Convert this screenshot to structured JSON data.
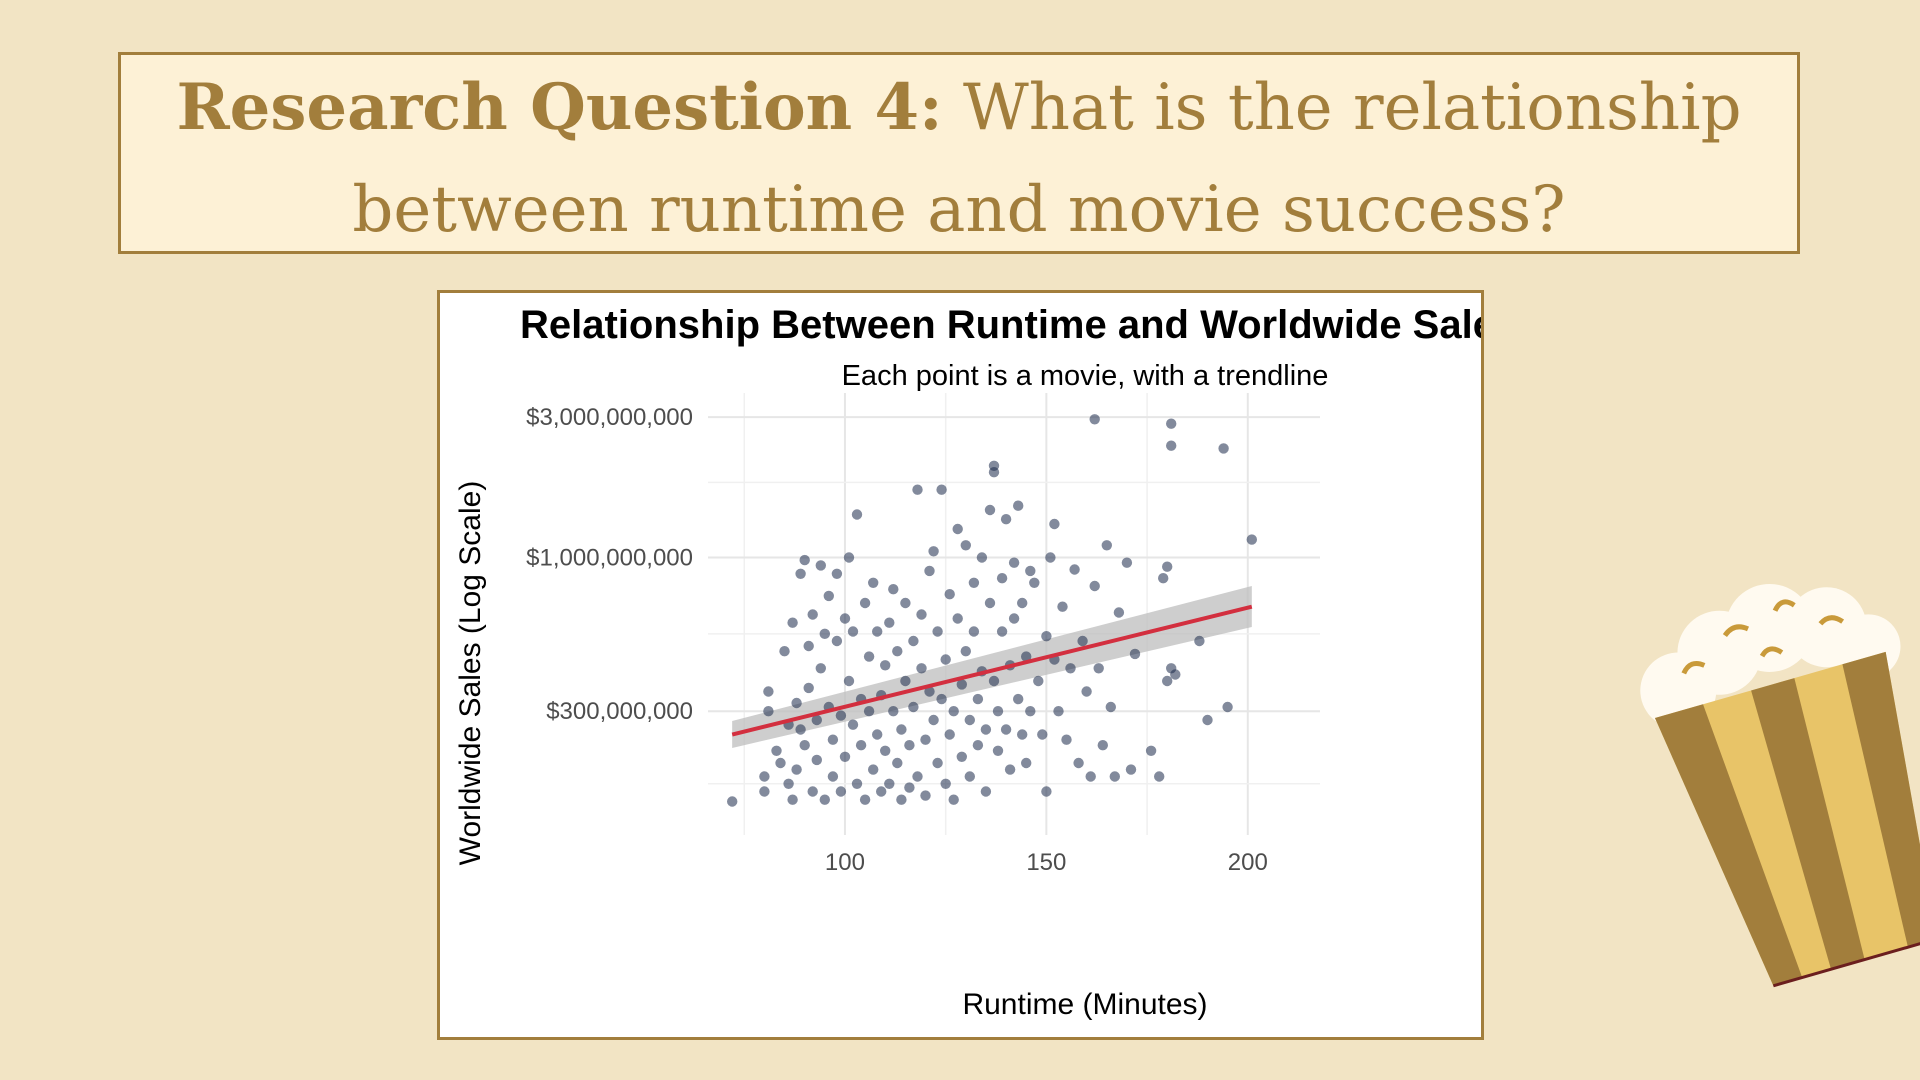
{
  "slide": {
    "heading_bold": "Research Question 4:",
    "heading_line1_rest": " What is the relationship",
    "heading_line2": "between runtime and movie success?",
    "decoration_icon": "popcorn-bucket-icon"
  },
  "colors": {
    "background": "#f2e4c4",
    "title_box_fill": "#fdf1d6",
    "accent_gold": "#a27e3c",
    "points": "#1b2a4a",
    "trendline": "#d32f3f",
    "confidence_band": "#bdbdbd"
  },
  "chart_data": {
    "type": "scatter",
    "title": "Relationship Between Runtime and Worldwide Sales",
    "subtitle": "Each point is a movie, with a trendline",
    "xlabel": "Runtime (Minutes)",
    "ylabel": "Worldwide Sales (Log Scale)",
    "x_scale": "linear",
    "y_scale": "log",
    "xlim": [
      66,
      208
    ],
    "ylim": [
      128000000,
      3100000000
    ],
    "x_ticks": [
      100,
      150,
      200
    ],
    "x_tick_labels": [
      "100",
      "150",
      "200"
    ],
    "y_ticks": [
      300000000,
      1000000000,
      3000000000
    ],
    "y_tick_labels": [
      "$300,000,000",
      "$1,000,000,000",
      "$3,000,000,000"
    ],
    "grid": true,
    "legend": "none",
    "trendline": {
      "x": [
        72,
        201
      ],
      "y": [
        250000000,
        680000000
      ],
      "band_lower": [
        225000000,
        580000000
      ],
      "band_upper": [
        278000000,
        800000000
      ]
    },
    "points": [
      [
        72,
        148000000
      ],
      [
        80,
        160000000
      ],
      [
        80,
        180000000
      ],
      [
        81,
        350000000
      ],
      [
        81,
        300000000
      ],
      [
        83,
        220000000
      ],
      [
        84,
        200000000
      ],
      [
        85,
        480000000
      ],
      [
        86,
        270000000
      ],
      [
        86,
        170000000
      ],
      [
        87,
        150000000
      ],
      [
        87,
        600000000
      ],
      [
        88,
        320000000
      ],
      [
        88,
        190000000
      ],
      [
        89,
        880000000
      ],
      [
        89,
        260000000
      ],
      [
        90,
        230000000
      ],
      [
        90,
        980000000
      ],
      [
        91,
        500000000
      ],
      [
        91,
        360000000
      ],
      [
        92,
        160000000
      ],
      [
        92,
        640000000
      ],
      [
        93,
        280000000
      ],
      [
        93,
        205000000
      ],
      [
        94,
        940000000
      ],
      [
        94,
        420000000
      ],
      [
        95,
        550000000
      ],
      [
        95,
        150000000
      ],
      [
        96,
        310000000
      ],
      [
        96,
        740000000
      ],
      [
        97,
        240000000
      ],
      [
        97,
        180000000
      ],
      [
        98,
        520000000
      ],
      [
        98,
        880000000
      ],
      [
        99,
        290000000
      ],
      [
        99,
        160000000
      ],
      [
        100,
        620000000
      ],
      [
        100,
        210000000
      ],
      [
        101,
        380000000
      ],
      [
        101,
        1000000000
      ],
      [
        102,
        270000000
      ],
      [
        102,
        560000000
      ],
      [
        103,
        170000000
      ],
      [
        103,
        1400000000
      ],
      [
        104,
        330000000
      ],
      [
        104,
        230000000
      ],
      [
        105,
        700000000
      ],
      [
        105,
        150000000
      ],
      [
        106,
        460000000
      ],
      [
        106,
        300000000
      ],
      [
        107,
        190000000
      ],
      [
        107,
        820000000
      ],
      [
        108,
        250000000
      ],
      [
        108,
        560000000
      ],
      [
        109,
        340000000
      ],
      [
        109,
        160000000
      ],
      [
        110,
        430000000
      ],
      [
        110,
        220000000
      ],
      [
        111,
        600000000
      ],
      [
        111,
        170000000
      ],
      [
        112,
        300000000
      ],
      [
        112,
        780000000
      ],
      [
        113,
        200000000
      ],
      [
        113,
        480000000
      ],
      [
        114,
        260000000
      ],
      [
        114,
        150000000
      ],
      [
        115,
        380000000
      ],
      [
        115,
        700000000
      ],
      [
        116,
        230000000
      ],
      [
        116,
        165000000
      ],
      [
        117,
        520000000
      ],
      [
        117,
        310000000
      ],
      [
        118,
        1700000000
      ],
      [
        118,
        180000000
      ],
      [
        119,
        420000000
      ],
      [
        119,
        640000000
      ],
      [
        120,
        240000000
      ],
      [
        120,
        155000000
      ],
      [
        121,
        350000000
      ],
      [
        121,
        900000000
      ],
      [
        122,
        280000000
      ],
      [
        122,
        1050000000
      ],
      [
        123,
        200000000
      ],
      [
        123,
        560000000
      ],
      [
        124,
        1700000000
      ],
      [
        124,
        330000000
      ],
      [
        125,
        450000000
      ],
      [
        125,
        170000000
      ],
      [
        126,
        750000000
      ],
      [
        126,
        250000000
      ],
      [
        127,
        300000000
      ],
      [
        127,
        150000000
      ],
      [
        128,
        620000000
      ],
      [
        128,
        1250000000
      ],
      [
        129,
        370000000
      ],
      [
        129,
        210000000
      ],
      [
        130,
        1100000000
      ],
      [
        130,
        480000000
      ],
      [
        131,
        280000000
      ],
      [
        131,
        180000000
      ],
      [
        132,
        560000000
      ],
      [
        132,
        820000000
      ],
      [
        133,
        330000000
      ],
      [
        133,
        230000000
      ],
      [
        134,
        1000000000
      ],
      [
        134,
        410000000
      ],
      [
        135,
        260000000
      ],
      [
        135,
        160000000
      ],
      [
        136,
        700000000
      ],
      [
        136,
        1450000000
      ],
      [
        137,
        380000000
      ],
      [
        137,
        2050000000
      ],
      [
        137,
        1950000000
      ],
      [
        138,
        300000000
      ],
      [
        138,
        220000000
      ],
      [
        139,
        560000000
      ],
      [
        139,
        850000000
      ],
      [
        140,
        260000000
      ],
      [
        140,
        1350000000
      ],
      [
        141,
        430000000
      ],
      [
        141,
        190000000
      ],
      [
        142,
        960000000
      ],
      [
        142,
        620000000
      ],
      [
        143,
        1500000000
      ],
      [
        143,
        330000000
      ],
      [
        144,
        250000000
      ],
      [
        144,
        700000000
      ],
      [
        145,
        460000000
      ],
      [
        145,
        200000000
      ],
      [
        146,
        900000000
      ],
      [
        146,
        300000000
      ],
      [
        147,
        820000000
      ],
      [
        148,
        380000000
      ],
      [
        149,
        250000000
      ],
      [
        150,
        540000000
      ],
      [
        150,
        160000000
      ],
      [
        151,
        1000000000
      ],
      [
        152,
        450000000
      ],
      [
        152,
        1300000000
      ],
      [
        153,
        300000000
      ],
      [
        154,
        680000000
      ],
      [
        155,
        240000000
      ],
      [
        156,
        420000000
      ],
      [
        157,
        910000000
      ],
      [
        158,
        200000000
      ],
      [
        159,
        520000000
      ],
      [
        160,
        350000000
      ],
      [
        161,
        180000000
      ],
      [
        162,
        2950000000
      ],
      [
        162,
        800000000
      ],
      [
        163,
        420000000
      ],
      [
        164,
        230000000
      ],
      [
        165,
        1100000000
      ],
      [
        166,
        310000000
      ],
      [
        167,
        180000000
      ],
      [
        168,
        650000000
      ],
      [
        170,
        960000000
      ],
      [
        171,
        190000000
      ],
      [
        172,
        470000000
      ],
      [
        176,
        220000000
      ],
      [
        178,
        180000000
      ],
      [
        179,
        850000000
      ],
      [
        180,
        930000000
      ],
      [
        180,
        380000000
      ],
      [
        181,
        420000000
      ],
      [
        181,
        2850000000
      ],
      [
        181,
        2400000000
      ],
      [
        182,
        400000000
      ],
      [
        188,
        520000000
      ],
      [
        190,
        280000000
      ],
      [
        194,
        2350000000
      ],
      [
        195,
        310000000
      ],
      [
        201,
        1150000000
      ]
    ]
  }
}
